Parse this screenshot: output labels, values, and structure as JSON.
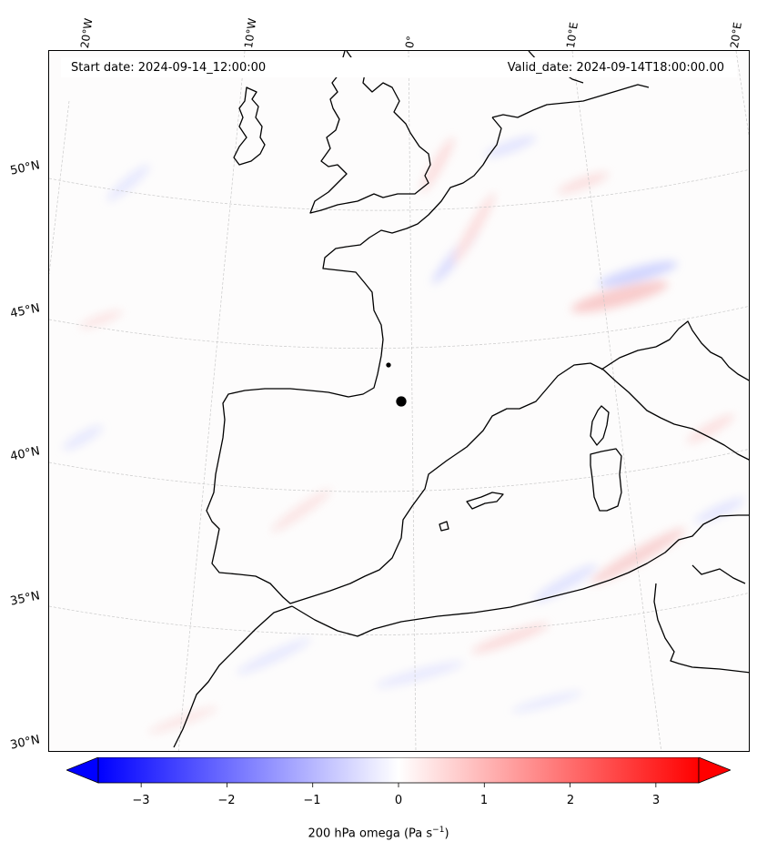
{
  "map": {
    "header": {
      "start_date": "Start date: 2024-09-14_12:00:00",
      "valid_date": "Valid_date: 2024-09-14T18:00:00.00"
    },
    "longitude_labels": [
      "20°W",
      "10°W",
      "0°",
      "10°E",
      "20°E"
    ],
    "latitude_labels": [
      "50°N",
      "45°N",
      "40°N",
      "35°N",
      "30°N"
    ],
    "field": "200 hPa omega",
    "colorbar": {
      "label_main": "200 hPa omega (Pa s",
      "label_exp": "−1",
      "label_end": ")",
      "ticks": [
        "−3",
        "−2",
        "−1",
        "0",
        "1",
        "2",
        "3"
      ],
      "min": -3.5,
      "max": 3.5,
      "colormap": "bwr",
      "color_low": "#0000ff",
      "color_mid": "#ffffff",
      "color_high": "#ff0000",
      "extend": "both"
    }
  }
}
